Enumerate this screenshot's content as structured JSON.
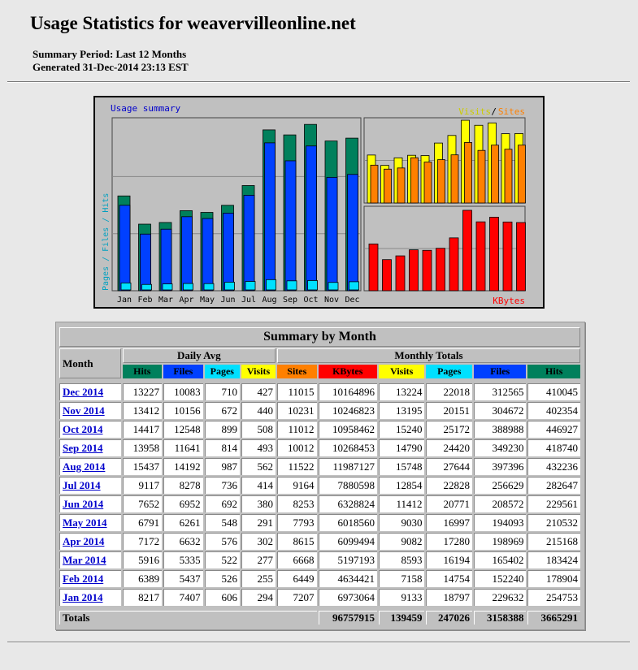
{
  "header": {
    "title": "Usage Statistics for weavervilleonline.net",
    "period": "Summary Period: Last 12 Months",
    "generated": "Generated 31-Dec-2014 23:13 EST"
  },
  "colors": {
    "hits": "#00805c",
    "files": "#0040ff",
    "pages": "#00e0ff",
    "visits": "#ffff00",
    "sites": "#ff8000",
    "kbytes": "#ff0000"
  },
  "graph": {
    "title": "Usage summary",
    "legend_left": "Pages / Files / Hits",
    "legend_right_visits": "Visits",
    "legend_sep": "/",
    "legend_right_sites": "Sites",
    "legend_kbytes": "KBytes",
    "months": [
      "Jan",
      "Feb",
      "Mar",
      "Apr",
      "May",
      "Jun",
      "Jul",
      "Aug",
      "Sep",
      "Oct",
      "Nov",
      "Dec"
    ]
  },
  "chart_data": {
    "type": "bar",
    "title": "Usage summary",
    "categories": [
      "Jan",
      "Feb",
      "Mar",
      "Apr",
      "May",
      "Jun",
      "Jul",
      "Aug",
      "Sep",
      "Oct",
      "Nov",
      "Dec"
    ],
    "series": [
      {
        "name": "Hits",
        "values": [
          254753,
          178904,
          183424,
          215168,
          210532,
          229561,
          282647,
          432236,
          418740,
          446927,
          402354,
          410045
        ]
      },
      {
        "name": "Files",
        "values": [
          229632,
          152240,
          165402,
          198969,
          194093,
          208572,
          256629,
          397396,
          349230,
          388988,
          304672,
          312565
        ]
      },
      {
        "name": "Pages",
        "values": [
          18797,
          14754,
          16194,
          17280,
          16997,
          20771,
          22828,
          27644,
          24420,
          25172,
          20151,
          22018
        ]
      },
      {
        "name": "Visits",
        "values": [
          9133,
          7158,
          8593,
          9082,
          9030,
          11412,
          12854,
          15748,
          14790,
          15240,
          13195,
          13224
        ]
      },
      {
        "name": "Sites",
        "values": [
          7207,
          6449,
          6668,
          8615,
          7793,
          8253,
          9164,
          11522,
          10012,
          11012,
          10231,
          11015
        ]
      },
      {
        "name": "KBytes",
        "values": [
          6973064,
          4634421,
          5197193,
          6099494,
          6018560,
          6328824,
          7880598,
          11987127,
          10268453,
          10958462,
          10246823,
          10164896
        ]
      }
    ]
  },
  "table": {
    "title": "Summary by Month",
    "month_header": "Month",
    "daily_avg_header": "Daily Avg",
    "monthly_totals_header": "Monthly Totals",
    "daily_cols": [
      "Hits",
      "Files",
      "Pages",
      "Visits"
    ],
    "monthly_cols": [
      "Sites",
      "KBytes",
      "Visits",
      "Pages",
      "Files",
      "Hits"
    ],
    "rows": [
      {
        "month": "Dec 2014",
        "d_hits": "13227",
        "d_files": "10083",
        "d_pages": "710",
        "d_visits": "427",
        "sites": "11015",
        "kbytes": "10164896",
        "visits": "13224",
        "pages": "22018",
        "files": "312565",
        "hits": "410045"
      },
      {
        "month": "Nov 2014",
        "d_hits": "13412",
        "d_files": "10156",
        "d_pages": "672",
        "d_visits": "440",
        "sites": "10231",
        "kbytes": "10246823",
        "visits": "13195",
        "pages": "20151",
        "files": "304672",
        "hits": "402354"
      },
      {
        "month": "Oct 2014",
        "d_hits": "14417",
        "d_files": "12548",
        "d_pages": "899",
        "d_visits": "508",
        "sites": "11012",
        "kbytes": "10958462",
        "visits": "15240",
        "pages": "25172",
        "files": "388988",
        "hits": "446927"
      },
      {
        "month": "Sep 2014",
        "d_hits": "13958",
        "d_files": "11641",
        "d_pages": "814",
        "d_visits": "493",
        "sites": "10012",
        "kbytes": "10268453",
        "visits": "14790",
        "pages": "24420",
        "files": "349230",
        "hits": "418740"
      },
      {
        "month": "Aug 2014",
        "d_hits": "15437",
        "d_files": "14192",
        "d_pages": "987",
        "d_visits": "562",
        "sites": "11522",
        "kbytes": "11987127",
        "visits": "15748",
        "pages": "27644",
        "files": "397396",
        "hits": "432236"
      },
      {
        "month": "Jul 2014",
        "d_hits": "9117",
        "d_files": "8278",
        "d_pages": "736",
        "d_visits": "414",
        "sites": "9164",
        "kbytes": "7880598",
        "visits": "12854",
        "pages": "22828",
        "files": "256629",
        "hits": "282647"
      },
      {
        "month": "Jun 2014",
        "d_hits": "7652",
        "d_files": "6952",
        "d_pages": "692",
        "d_visits": "380",
        "sites": "8253",
        "kbytes": "6328824",
        "visits": "11412",
        "pages": "20771",
        "files": "208572",
        "hits": "229561"
      },
      {
        "month": "May 2014",
        "d_hits": "6791",
        "d_files": "6261",
        "d_pages": "548",
        "d_visits": "291",
        "sites": "7793",
        "kbytes": "6018560",
        "visits": "9030",
        "pages": "16997",
        "files": "194093",
        "hits": "210532"
      },
      {
        "month": "Apr 2014",
        "d_hits": "7172",
        "d_files": "6632",
        "d_pages": "576",
        "d_visits": "302",
        "sites": "8615",
        "kbytes": "6099494",
        "visits": "9082",
        "pages": "17280",
        "files": "198969",
        "hits": "215168"
      },
      {
        "month": "Mar 2014",
        "d_hits": "5916",
        "d_files": "5335",
        "d_pages": "522",
        "d_visits": "277",
        "sites": "6668",
        "kbytes": "5197193",
        "visits": "8593",
        "pages": "16194",
        "files": "165402",
        "hits": "183424"
      },
      {
        "month": "Feb 2014",
        "d_hits": "6389",
        "d_files": "5437",
        "d_pages": "526",
        "d_visits": "255",
        "sites": "6449",
        "kbytes": "4634421",
        "visits": "7158",
        "pages": "14754",
        "files": "152240",
        "hits": "178904"
      },
      {
        "month": "Jan 2014",
        "d_hits": "8217",
        "d_files": "7407",
        "d_pages": "606",
        "d_visits": "294",
        "sites": "7207",
        "kbytes": "6973064",
        "visits": "9133",
        "pages": "18797",
        "files": "229632",
        "hits": "254753"
      }
    ],
    "totals": {
      "label": "Totals",
      "kbytes": "96757915",
      "visits": "139459",
      "pages": "247026",
      "files": "3158388",
      "hits": "3665291"
    }
  }
}
